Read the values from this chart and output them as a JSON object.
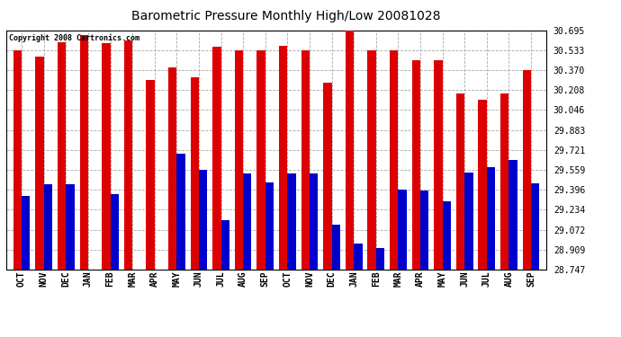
{
  "title": "Barometric Pressure Monthly High/Low 20081028",
  "copyright_text": "Copyright 2008 Cartronics.com",
  "months": [
    "OCT",
    "NOV",
    "DEC",
    "JAN",
    "FEB",
    "MAR",
    "APR",
    "MAY",
    "JUN",
    "JUL",
    "AUG",
    "SEP",
    "OCT",
    "NOV",
    "DEC",
    "JAN",
    "FEB",
    "MAR",
    "APR",
    "MAY",
    "JUN",
    "JUL",
    "AUG",
    "SEP"
  ],
  "highs": [
    30.533,
    30.48,
    30.6,
    30.66,
    30.59,
    30.61,
    30.29,
    30.39,
    30.31,
    30.562,
    30.533,
    30.533,
    30.57,
    30.533,
    30.27,
    30.695,
    30.533,
    30.533,
    30.45,
    30.45,
    30.18,
    30.13,
    30.18,
    30.37
  ],
  "lows": [
    29.35,
    29.44,
    29.44,
    28.747,
    29.36,
    28.747,
    28.747,
    29.69,
    29.56,
    29.15,
    29.53,
    29.46,
    29.53,
    29.53,
    29.11,
    28.96,
    28.92,
    29.4,
    29.39,
    29.3,
    29.54,
    29.58,
    29.64,
    29.45
  ],
  "bar_color_high": "#dd0000",
  "bar_color_low": "#0000cc",
  "background_color": "#ffffff",
  "plot_bg_color": "#ffffff",
  "grid_color": "#aaaaaa",
  "ylim_min": 28.747,
  "ylim_max": 30.695,
  "yticks": [
    28.747,
    28.909,
    29.072,
    29.234,
    29.396,
    29.559,
    29.721,
    29.883,
    30.046,
    30.208,
    30.37,
    30.533,
    30.695
  ]
}
